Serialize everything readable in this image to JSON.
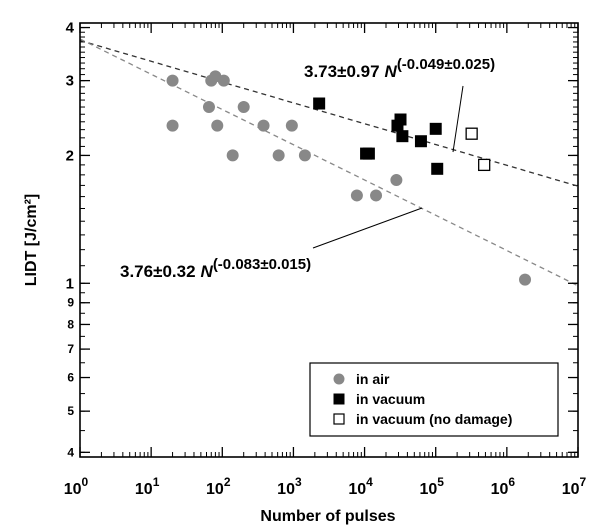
{
  "chart_data": {
    "type": "scatter",
    "xlabel": "Number of pulses",
    "ylabel": "LIDT [J/cm²]",
    "x_scale": "log",
    "y_scale": "log",
    "xlim": [
      1,
      10000000
    ],
    "ylim": [
      3.9,
      41
    ],
    "x_ticks": [
      {
        "value": 1,
        "base": "10",
        "exp": "0"
      },
      {
        "value": 10,
        "base": "10",
        "exp": "1"
      },
      {
        "value": 100,
        "base": "10",
        "exp": "2"
      },
      {
        "value": 1000,
        "base": "10",
        "exp": "3"
      },
      {
        "value": 10000,
        "base": "10",
        "exp": "4"
      },
      {
        "value": 100000,
        "base": "10",
        "exp": "5"
      },
      {
        "value": 1000000,
        "base": "10",
        "exp": "6"
      },
      {
        "value": 10000000,
        "base": "10",
        "exp": "7"
      }
    ],
    "y_ticks_major": [
      {
        "value": 10,
        "label": "1"
      },
      {
        "value": 20,
        "label": "2"
      },
      {
        "value": 30,
        "label": "3"
      },
      {
        "value": 40,
        "label": "4"
      }
    ],
    "y_ticks_minor": [
      {
        "value": 4,
        "label": "4"
      },
      {
        "value": 5,
        "label": "5"
      },
      {
        "value": 6,
        "label": "6"
      },
      {
        "value": 7,
        "label": "7"
      },
      {
        "value": 8,
        "label": "8"
      },
      {
        "value": 9,
        "label": "9"
      }
    ],
    "series": [
      {
        "name": "in air",
        "marker": "circle",
        "color": "#888888",
        "points": [
          [
            20,
            30
          ],
          [
            20,
            23.5
          ],
          [
            65,
            26
          ],
          [
            70,
            30
          ],
          [
            80,
            30.7
          ],
          [
            85,
            23.5
          ],
          [
            105,
            30
          ],
          [
            140,
            20
          ],
          [
            200,
            26
          ],
          [
            380,
            23.5
          ],
          [
            620,
            20
          ],
          [
            950,
            23.5
          ],
          [
            1450,
            20
          ],
          [
            7800,
            16.1
          ],
          [
            14500,
            16.1
          ],
          [
            28000,
            17.5
          ],
          [
            1800000,
            10.2
          ]
        ]
      },
      {
        "name": "in vacuum",
        "marker": "square-filled",
        "color": "#000000",
        "points": [
          [
            2300,
            26.5
          ],
          [
            10500,
            20.2
          ],
          [
            11500,
            20.2
          ],
          [
            29000,
            23.5
          ],
          [
            32000,
            24.3
          ],
          [
            34000,
            22.2
          ],
          [
            62000,
            21.6
          ],
          [
            100000,
            23.1
          ],
          [
            105000,
            18.6
          ]
        ]
      },
      {
        "name": "in vacuum (no damage)",
        "marker": "square-open",
        "color": "#000000",
        "points": [
          [
            320000,
            22.5
          ],
          [
            480000,
            19.0
          ]
        ]
      }
    ],
    "fits": [
      {
        "a": 37.3,
        "b": -0.049,
        "color": "#333333",
        "label_parts": [
          "3.73",
          "±",
          "0.97",
          "N",
          "(-0.049",
          "±",
          "0.025)"
        ]
      },
      {
        "a": 37.6,
        "b": -0.083,
        "color": "#888888",
        "label_parts": [
          "3.76",
          "±",
          "0.32",
          "N",
          "(-0.083",
          "±",
          "0.015)"
        ]
      }
    ],
    "legend": {
      "placement": "bottom-right",
      "entries": [
        "in air",
        "in vacuum",
        "in vacuum (no damage)"
      ]
    },
    "grid": false
  }
}
